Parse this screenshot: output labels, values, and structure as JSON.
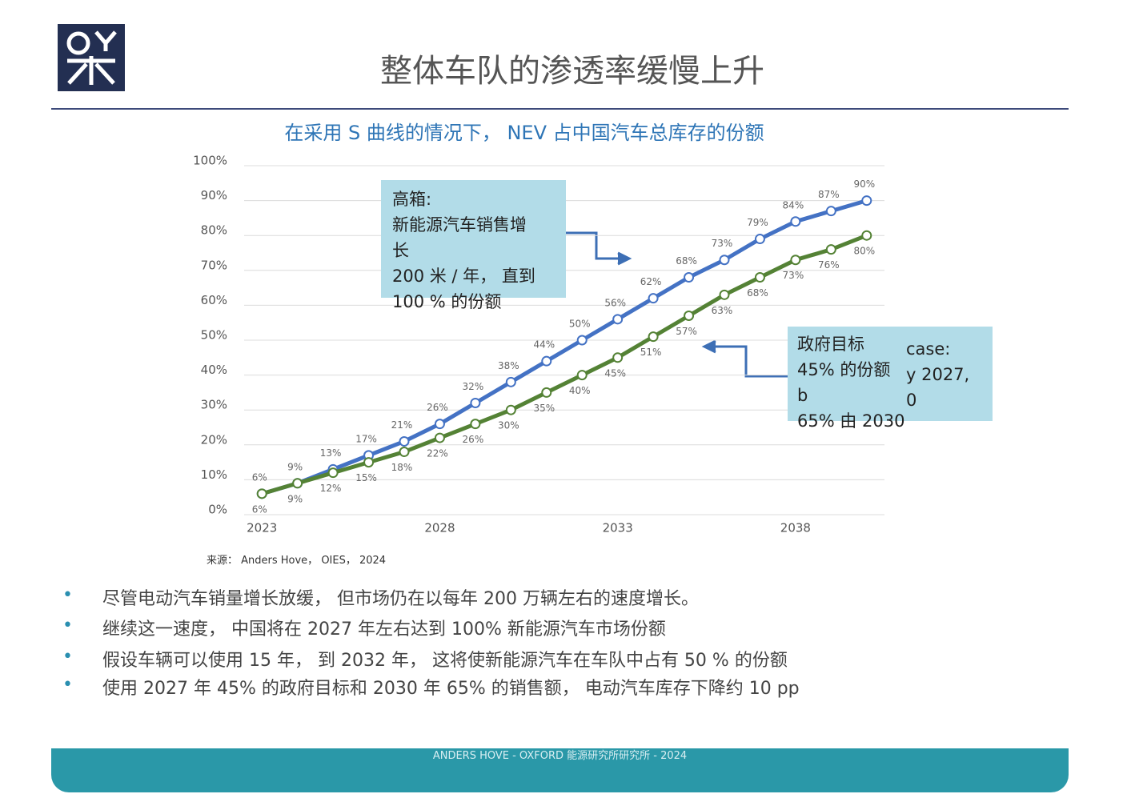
{
  "header": {
    "title": "整体车队的渗透率缓慢上升"
  },
  "chart_data": {
    "type": "line",
    "title": "在采用 S 曲线的情况下， NEV 占中国汽车总库存的份额",
    "x": [
      2023,
      2024,
      2025,
      2026,
      2027,
      2028,
      2029,
      2030,
      2031,
      2032,
      2033,
      2034,
      2035,
      2036,
      2037,
      2038,
      2039,
      2040
    ],
    "xlim": [
      2022.5,
      2040.5
    ],
    "xticks": [
      2023,
      2028,
      2033,
      2038
    ],
    "ylim": [
      0,
      100
    ],
    "yticks": [
      {
        "value": 0,
        "label": "0%"
      },
      {
        "value": 10,
        "label": "10%"
      },
      {
        "value": 20,
        "label": "20%"
      },
      {
        "value": 30,
        "label": "30%"
      },
      {
        "value": 40,
        "label": "40%"
      },
      {
        "value": 50,
        "label": "50%"
      },
      {
        "value": 60,
        "label": "60%"
      },
      {
        "value": 70,
        "label": "70%"
      },
      {
        "value": 80,
        "label": "80%"
      },
      {
        "value": 90,
        "label": "90%"
      },
      {
        "value": 100,
        "label": "100%"
      }
    ],
    "grid": true,
    "series": [
      {
        "color": "#4472c4",
        "label_side": "above",
        "values": [
          6,
          9,
          13,
          17,
          21,
          26,
          32,
          38,
          44,
          50,
          56,
          62,
          68,
          73,
          79,
          84,
          87,
          90
        ],
        "value_labels": [
          "6%",
          "9%",
          "13%",
          "17%",
          "21%",
          "26%",
          "32%",
          "38%",
          "44%",
          "50%",
          "56%",
          "62%",
          "68%",
          "73%",
          "79%",
          "84%",
          "87%",
          "90%"
        ]
      },
      {
        "color": "#548235",
        "label_side": "below",
        "values": [
          6,
          9,
          12,
          15,
          18,
          22,
          26,
          30,
          35,
          40,
          45,
          51,
          57,
          63,
          68,
          73,
          76,
          80
        ],
        "value_labels": [
          "6%",
          "9%",
          "12%",
          "15%",
          "18%",
          "22%",
          "26%",
          "30%",
          "35%",
          "40%",
          "45%",
          "51%",
          "57%",
          "63%",
          "68%",
          "73%",
          "76%",
          "80%"
        ]
      }
    ],
    "annotations": [
      {
        "lines": [
          "高箱:",
          "新能源汽车销售增",
          "长",
          "200 米 / 年， 直到",
          "100 % 的份额"
        ]
      },
      {
        "lines": [
          "政府目标",
          "45% 的份额",
          "b",
          "65% 由 2030"
        ],
        "extra": [
          "case:",
          "y 2027,",
          "0"
        ]
      }
    ],
    "source": "来源： Anders Hove， OIES， 2024"
  },
  "bullets": [
    "尽管电动汽车销量增长放缓， 但市场仍在以每年 200 万辆左右的速度增长。",
    "继续这一速度， 中国将在 2027 年左右达到 100% 新能源汽车市场份额",
    "假设车辆可以使用 15 年， 到 2032 年， 这将使新能源汽车在车队中占有 50 % 的份额",
    "使用 2027 年 45% 的政府目标和 2030 年 65% 的销售额， 电动汽车库存下降约 10 pp"
  ],
  "footer": "ANDERS HOVE - OXFORD 能源研究所研究所 - 2024"
}
